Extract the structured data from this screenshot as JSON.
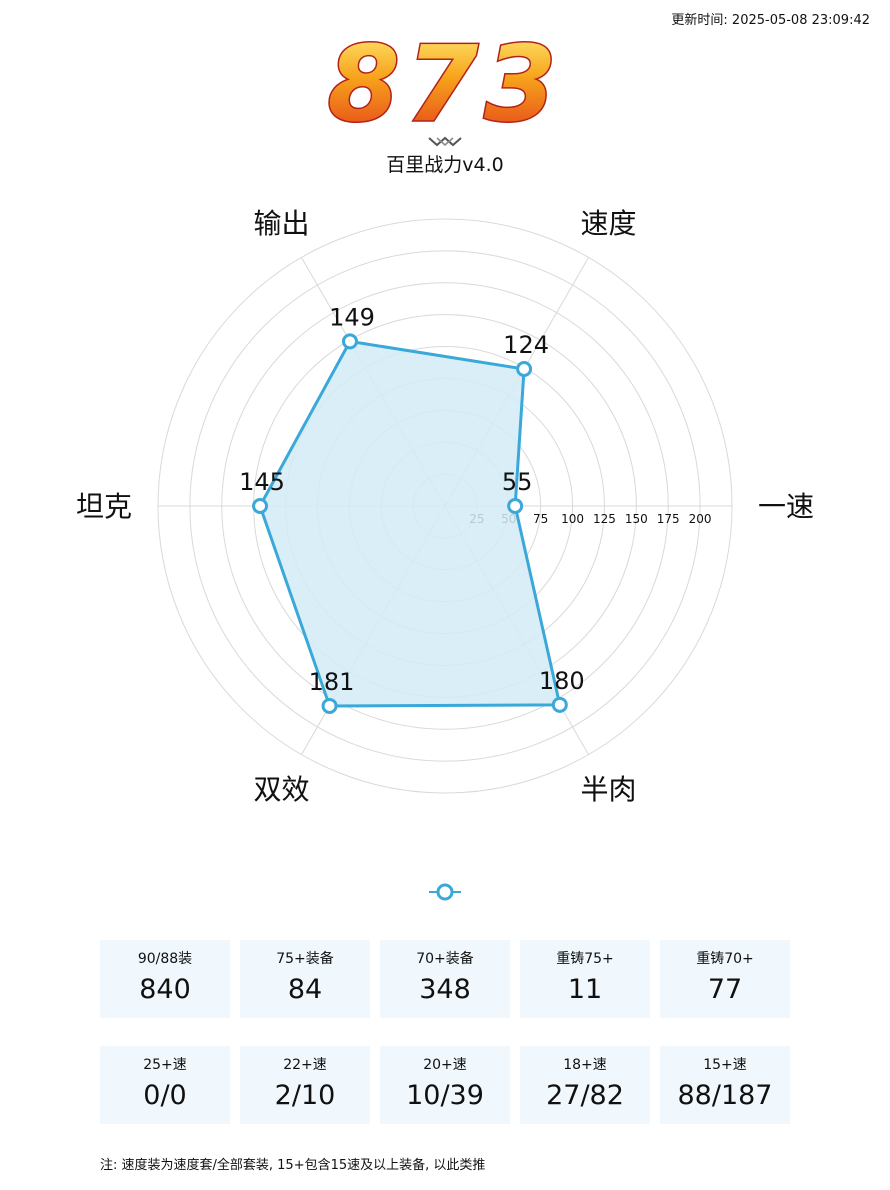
{
  "header": {
    "update_time": "更新时间: 2025-05-08 23:09:42",
    "score": "873",
    "subtitle": "百里战力v4.0"
  },
  "chart_data": {
    "type": "radar",
    "axes": [
      "一速",
      "速度",
      "输出",
      "坦克",
      "双效",
      "半肉"
    ],
    "values": [
      55,
      124,
      149,
      145,
      181,
      180
    ],
    "rmax": 225,
    "ticks": [
      25,
      50,
      75,
      100,
      125,
      150,
      175,
      200
    ],
    "colors": {
      "line": "#3aa8d8",
      "fill": "#d3ebf7",
      "grid": "#d9d9d9"
    }
  },
  "stats_row1": [
    {
      "label": "90/88装",
      "value": "840"
    },
    {
      "label": "75+装备",
      "value": "84"
    },
    {
      "label": "70+装备",
      "value": "348"
    },
    {
      "label": "重铸75+",
      "value": "11"
    },
    {
      "label": "重铸70+",
      "value": "77"
    }
  ],
  "stats_row2": [
    {
      "label": "25+速",
      "value": "0/0"
    },
    {
      "label": "22+速",
      "value": "2/10"
    },
    {
      "label": "20+速",
      "value": "10/39"
    },
    {
      "label": "18+速",
      "value": "27/82"
    },
    {
      "label": "15+速",
      "value": "88/187"
    }
  ],
  "note": "注: 速度装为速度套/全部套装, 15+包含15速及以上装备, 以此类推"
}
